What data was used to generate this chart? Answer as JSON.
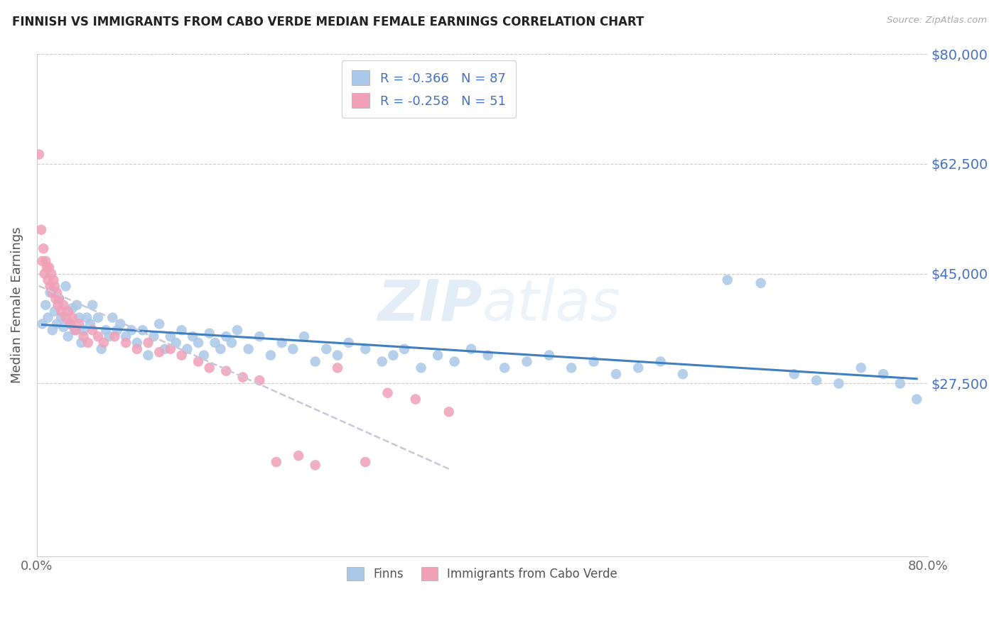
{
  "title": "FINNISH VS IMMIGRANTS FROM CABO VERDE MEDIAN FEMALE EARNINGS CORRELATION CHART",
  "source": "Source: ZipAtlas.com",
  "ylabel": "Median Female Earnings",
  "xlim": [
    0.0,
    0.8
  ],
  "ylim": [
    0,
    80000
  ],
  "ytick_vals": [
    27500,
    45000,
    62500,
    80000
  ],
  "ytick_labels": [
    "$27,500",
    "$45,000",
    "$62,500",
    "$80,000"
  ],
  "bg_color": "#ffffff",
  "grid_color": "#cccccc",
  "legend_R1": "-0.366",
  "legend_N1": "87",
  "legend_R2": "-0.258",
  "legend_N2": "51",
  "finns_color": "#aac8e8",
  "cabo_color": "#f0a0b8",
  "finn_line_color": "#4080c0",
  "cabo_line_color": "#c8c8d8",
  "label_color": "#4472c4",
  "finns_x": [
    0.005,
    0.008,
    0.01,
    0.012,
    0.014,
    0.016,
    0.018,
    0.02,
    0.022,
    0.024,
    0.026,
    0.028,
    0.03,
    0.032,
    0.034,
    0.036,
    0.038,
    0.04,
    0.042,
    0.045,
    0.048,
    0.05,
    0.055,
    0.058,
    0.062,
    0.065,
    0.068,
    0.072,
    0.075,
    0.08,
    0.085,
    0.09,
    0.095,
    0.1,
    0.105,
    0.11,
    0.115,
    0.12,
    0.125,
    0.13,
    0.135,
    0.14,
    0.145,
    0.15,
    0.155,
    0.16,
    0.165,
    0.17,
    0.175,
    0.18,
    0.19,
    0.2,
    0.21,
    0.22,
    0.23,
    0.24,
    0.25,
    0.26,
    0.27,
    0.28,
    0.295,
    0.31,
    0.32,
    0.33,
    0.345,
    0.36,
    0.375,
    0.39,
    0.405,
    0.42,
    0.44,
    0.46,
    0.48,
    0.5,
    0.52,
    0.54,
    0.56,
    0.58,
    0.62,
    0.65,
    0.68,
    0.7,
    0.72,
    0.74,
    0.76,
    0.775,
    0.79
  ],
  "finns_y": [
    37000,
    40000,
    38000,
    42000,
    36000,
    39000,
    37000,
    41000,
    38000,
    36500,
    43000,
    35000,
    37000,
    39500,
    36000,
    40000,
    38000,
    34000,
    36000,
    38000,
    37000,
    40000,
    38000,
    33000,
    36000,
    35000,
    38000,
    36000,
    37000,
    35000,
    36000,
    34000,
    36000,
    32000,
    35000,
    37000,
    33000,
    35000,
    34000,
    36000,
    33000,
    35000,
    34000,
    32000,
    35500,
    34000,
    33000,
    35000,
    34000,
    36000,
    33000,
    35000,
    32000,
    34000,
    33000,
    35000,
    31000,
    33000,
    32000,
    34000,
    33000,
    31000,
    32000,
    33000,
    30000,
    32000,
    31000,
    33000,
    32000,
    30000,
    31000,
    32000,
    30000,
    31000,
    29000,
    30000,
    31000,
    29000,
    44000,
    43500,
    29000,
    28000,
    27500,
    30000,
    29000,
    27500,
    25000
  ],
  "cabo_x": [
    0.002,
    0.004,
    0.005,
    0.006,
    0.007,
    0.008,
    0.009,
    0.01,
    0.011,
    0.012,
    0.013,
    0.014,
    0.015,
    0.016,
    0.017,
    0.018,
    0.019,
    0.02,
    0.022,
    0.024,
    0.026,
    0.028,
    0.03,
    0.032,
    0.035,
    0.038,
    0.042,
    0.046,
    0.05,
    0.055,
    0.06,
    0.07,
    0.08,
    0.09,
    0.1,
    0.11,
    0.12,
    0.13,
    0.145,
    0.155,
    0.17,
    0.185,
    0.2,
    0.215,
    0.235,
    0.25,
    0.27,
    0.295,
    0.315,
    0.34,
    0.37
  ],
  "cabo_y": [
    64000,
    52000,
    47000,
    49000,
    45000,
    47000,
    46000,
    44000,
    46000,
    43000,
    45000,
    42000,
    44000,
    43000,
    41000,
    42000,
    40000,
    41000,
    39000,
    40000,
    38000,
    39000,
    37000,
    38000,
    36000,
    37000,
    35000,
    34000,
    36000,
    35000,
    34000,
    35000,
    34000,
    33000,
    34000,
    32500,
    33000,
    32000,
    31000,
    30000,
    29500,
    28500,
    28000,
    15000,
    16000,
    14500,
    30000,
    15000,
    26000,
    25000,
    23000
  ]
}
